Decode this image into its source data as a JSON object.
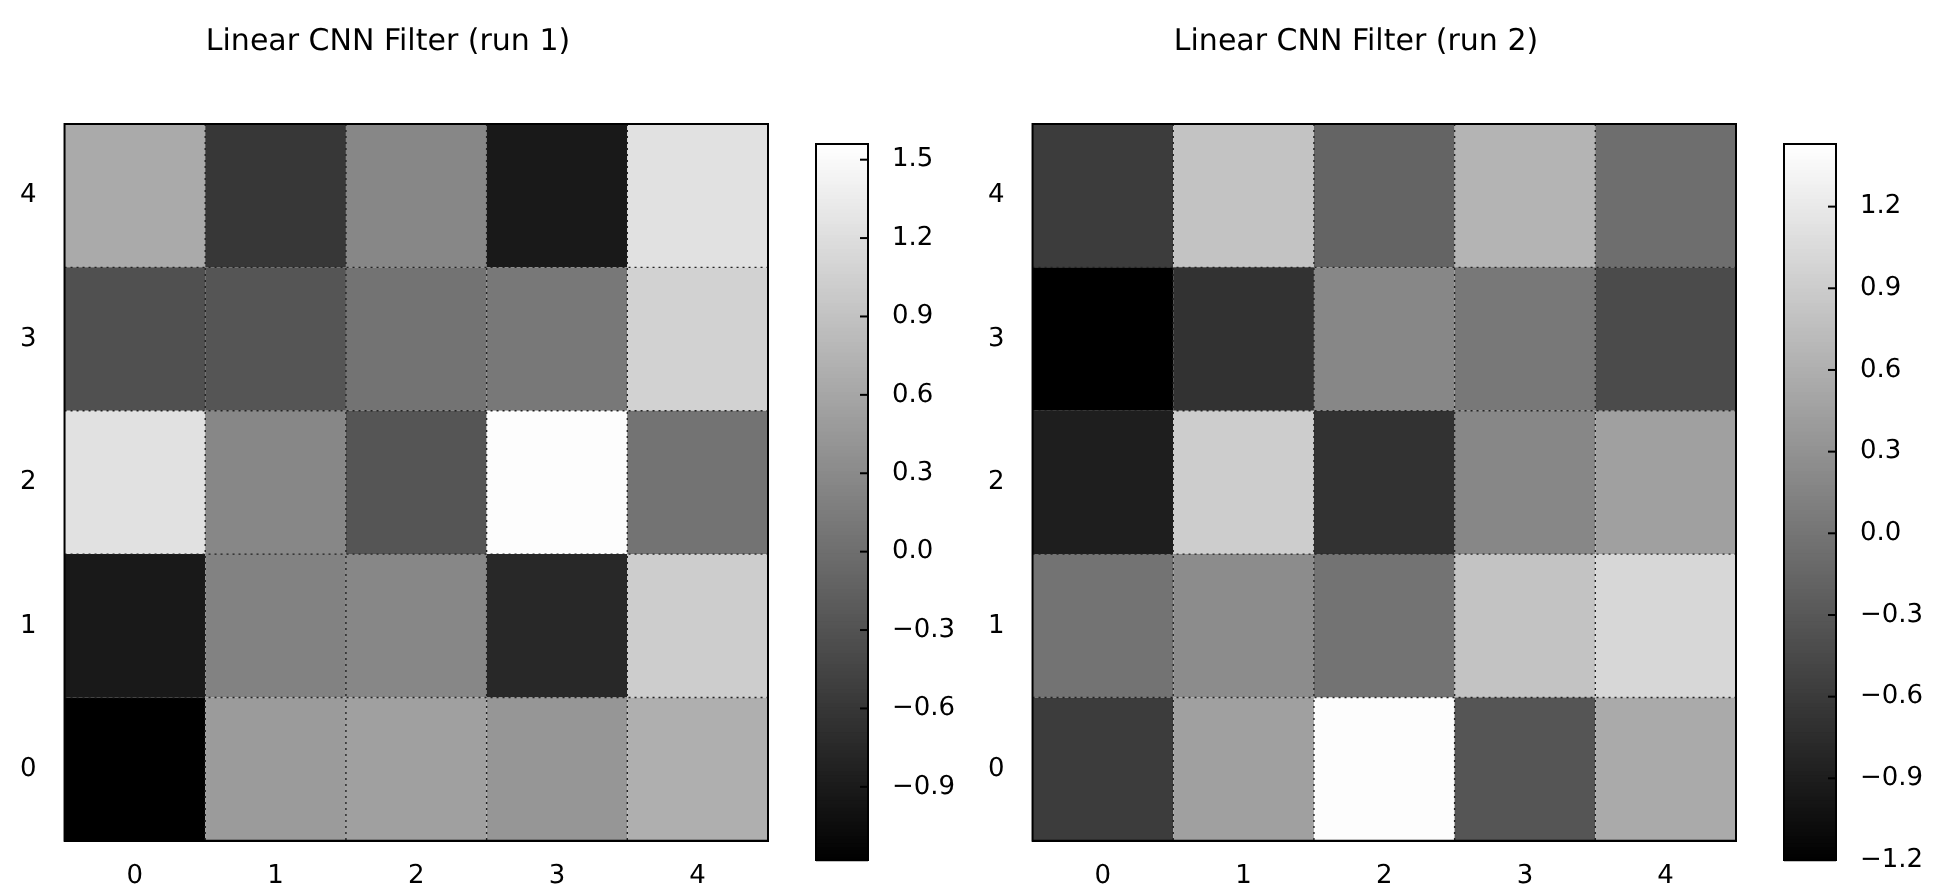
{
  "chart_data": [
    {
      "type": "heatmap",
      "title": "Linear CNN Filter (run 1)",
      "categories": [
        "0",
        "1",
        "2",
        "3",
        "4"
      ],
      "y_categories": [
        "4",
        "3",
        "2",
        "1",
        "0"
      ],
      "cells": [
        [
          0.65,
          -0.59,
          0.27,
          -0.91,
          1.24
        ],
        [
          -0.32,
          -0.27,
          0.06,
          0.11,
          1.08
        ],
        [
          1.24,
          0.27,
          -0.27,
          1.54,
          0.06
        ],
        [
          -0.91,
          0.22,
          0.27,
          -0.75,
          1.02
        ],
        [
          -1.18,
          0.49,
          0.54,
          0.43,
          0.7
        ]
      ],
      "clim": [
        -1.18,
        1.56
      ],
      "cticks": [
        {
          "value": -0.9,
          "label": "−0.9"
        },
        {
          "value": -0.6,
          "label": "−0.6"
        },
        {
          "value": -0.3,
          "label": "−0.3"
        },
        {
          "value": 0,
          "label": "0.0"
        },
        {
          "value": 0.3,
          "label": "0.3"
        },
        {
          "value": 0.6,
          "label": "0.6"
        },
        {
          "value": 0.9,
          "label": "0.9"
        },
        {
          "value": 1.2,
          "label": "1.2"
        },
        {
          "value": 1.5,
          "label": "1.5"
        }
      ],
      "grid": true
    },
    {
      "type": "heatmap",
      "title": "Linear CNN Filter (run 2)",
      "categories": [
        "0",
        "1",
        "2",
        "3",
        "4"
      ],
      "y_categories": [
        "4",
        "3",
        "2",
        "1",
        "0"
      ],
      "cells": [
        [
          -0.58,
          0.81,
          -0.17,
          0.66,
          -0.07
        ],
        [
          -1.2,
          -0.68,
          0.19,
          0.04,
          -0.43
        ],
        [
          -0.89,
          0.91,
          -0.68,
          0.19,
          0.45
        ],
        [
          -0.01,
          0.24,
          -0.01,
          0.81,
          1.02
        ],
        [
          -0.58,
          0.45,
          1.41,
          -0.32,
          0.55
        ]
      ],
      "clim": [
        -1.2,
        1.43
      ],
      "cticks": [
        {
          "value": -1.2,
          "label": "−1.2"
        },
        {
          "value": -0.9,
          "label": "−0.9"
        },
        {
          "value": -0.6,
          "label": "−0.6"
        },
        {
          "value": -0.3,
          "label": "−0.3"
        },
        {
          "value": 0,
          "label": "0.0"
        },
        {
          "value": 0.3,
          "label": "0.3"
        },
        {
          "value": 0.6,
          "label": "0.6"
        },
        {
          "value": 0.9,
          "label": "0.9"
        },
        {
          "value": 1.2,
          "label": "1.2"
        }
      ],
      "grid": true
    }
  ]
}
